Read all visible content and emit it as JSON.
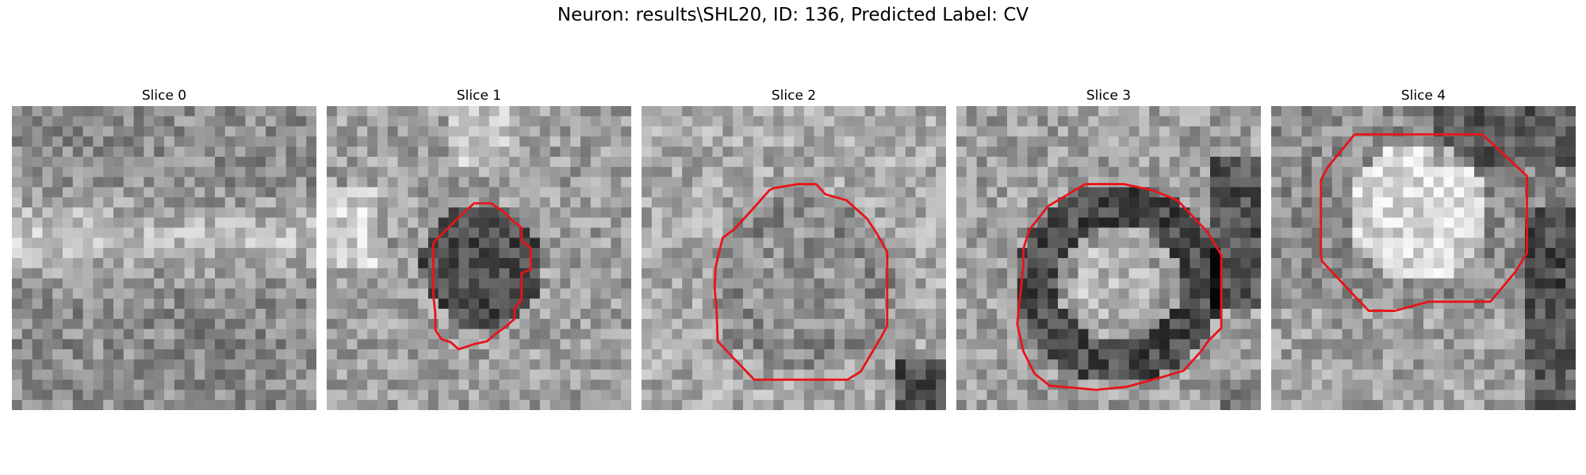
{
  "figure": {
    "title": "Neuron: results\\SHL20, ID: 136, Predicted Label: CV"
  },
  "contour_color": "#e8141a",
  "panels": [
    {
      "title": "Slice 0",
      "has_contour": false,
      "contour_shape": "none"
    },
    {
      "title": "Slice 1",
      "has_contour": true,
      "contour_shape": "small-polygon"
    },
    {
      "title": "Slice 2",
      "has_contour": true,
      "contour_shape": "large-polygon"
    },
    {
      "title": "Slice 3",
      "has_contour": true,
      "contour_shape": "large-polygon"
    },
    {
      "title": "Slice 4",
      "has_contour": true,
      "contour_shape": "upper-polygon"
    }
  ]
}
